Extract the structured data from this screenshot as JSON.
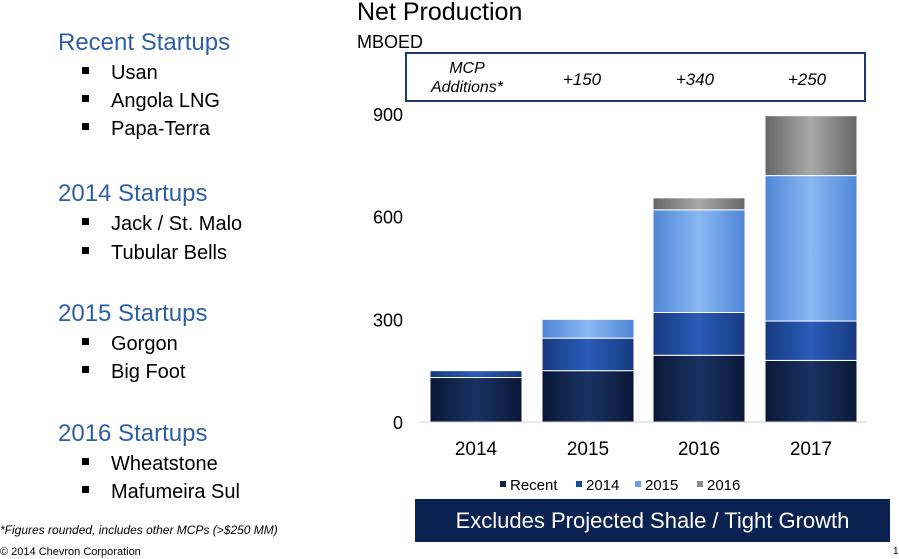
{
  "startups": [
    {
      "title": "Recent Startups",
      "items": [
        "Usan",
        "Angola LNG",
        "Papa-Terra"
      ]
    },
    {
      "title": "2014 Startups",
      "items": [
        "Jack / St. Malo",
        "Tubular Bells"
      ]
    },
    {
      "title": "2015 Startups",
      "items": [
        "Gorgon",
        "Big Foot"
      ]
    },
    {
      "title": "2016 Startups",
      "items": [
        "Wheatstone",
        "Mafumeira Sul"
      ]
    }
  ],
  "footnote": "*Figures rounded, includes other MCPs (>$250 MM)",
  "copyright": "© 2014 Chevron Corporation",
  "page_number": "1",
  "banner": "Excludes Projected Shale / Tight Growth",
  "mcp": {
    "label_line1": "MCP",
    "label_line2": "Additions*",
    "values": [
      "+150",
      "+340",
      "+250"
    ]
  },
  "colors": {
    "recent": "#0f2247",
    "y2014": "#1e4a9c",
    "y2015": "#6a9ee6",
    "y2016": "#8a8a8a"
  },
  "chart_data": {
    "type": "bar",
    "stacked": true,
    "title": "Net Production",
    "subtitle": "MBOED",
    "categories": [
      "2014",
      "2015",
      "2016",
      "2017"
    ],
    "series": [
      {
        "name": "Recent",
        "values": [
          130,
          150,
          195,
          180
        ]
      },
      {
        "name": "2014",
        "values": [
          20,
          95,
          125,
          115
        ]
      },
      {
        "name": "2015",
        "values": [
          0,
          55,
          300,
          425
        ]
      },
      {
        "name": "2016",
        "values": [
          0,
          0,
          35,
          175
        ]
      }
    ],
    "yticks": [
      0,
      300,
      600,
      900
    ],
    "ylim": [
      0,
      900
    ],
    "legend_position": "bottom",
    "grid": false
  }
}
